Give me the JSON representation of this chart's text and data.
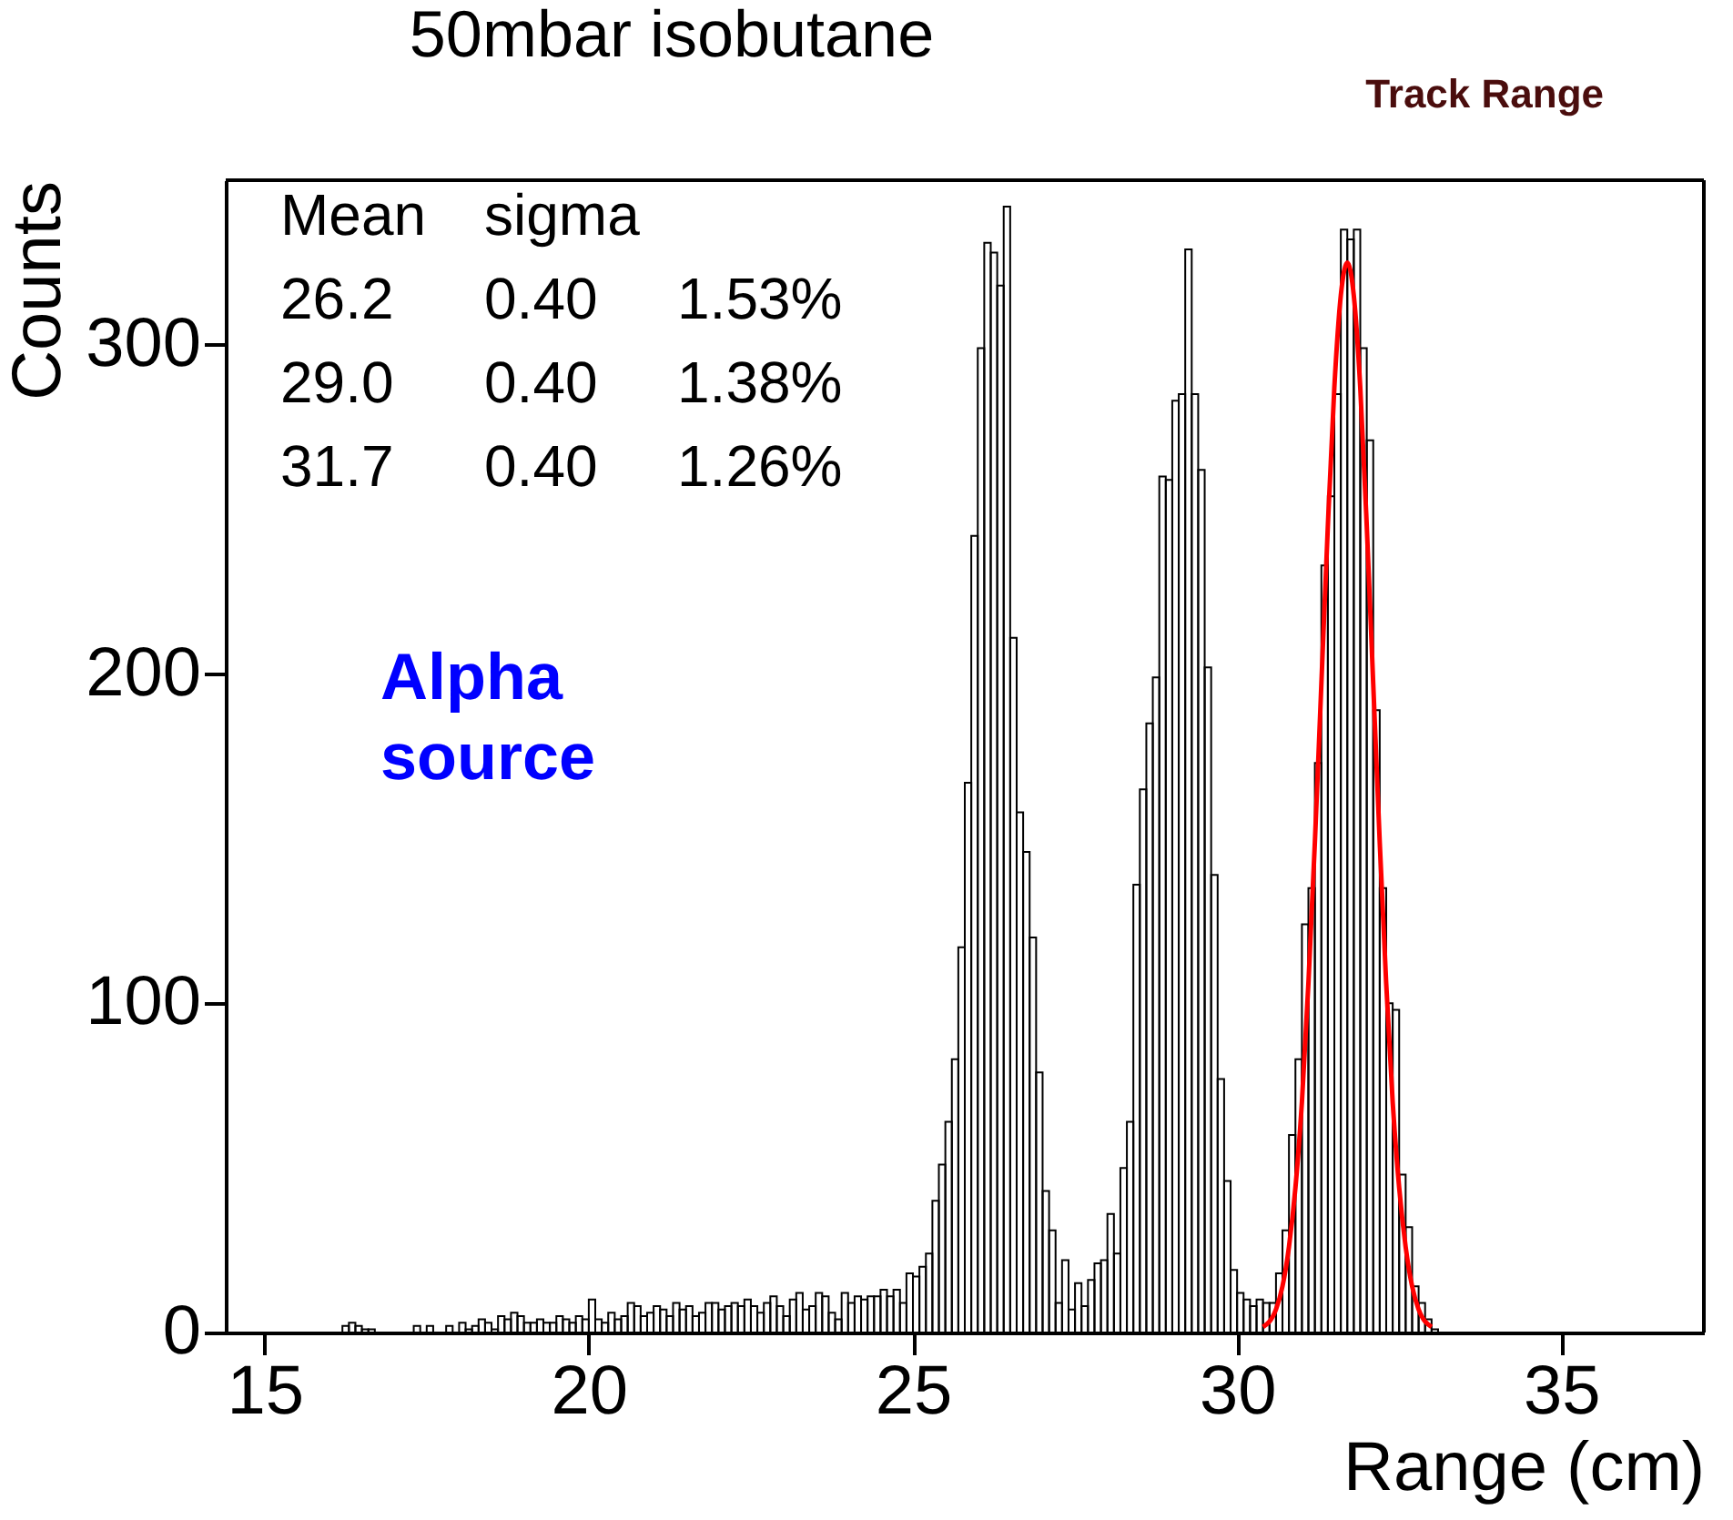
{
  "chart_data": {
    "type": "histogram",
    "title": "50mbar isobutane",
    "subtitle": "Track Range",
    "xlabel": "Range (cm)",
    "ylabel": "Counts",
    "annotations": [
      "Mean sigma",
      "26.2 0.40 1.53%",
      "29.0 0.40 1.38%",
      "31.7 0.40 1.26%",
      "Alpha source"
    ],
    "xlim": [
      14.4,
      37.2
    ],
    "xticks": [
      15,
      20,
      25,
      30,
      35
    ],
    "ylim": [
      0,
      350
    ],
    "yticks": [
      0,
      100,
      200,
      300
    ],
    "series": [
      {
        "color": "#000000",
        "bins": [
          16.0,
          16.1,
          16.2,
          16.3,
          16.4,
          16.5,
          16.6,
          16.7,
          16.8,
          16.9,
          17.0,
          17.1,
          17.2,
          17.3,
          17.4,
          17.5,
          17.6,
          17.7,
          17.8,
          17.9,
          18.0,
          18.1,
          18.2,
          18.3,
          18.4,
          18.5,
          18.6,
          18.7,
          18.8,
          18.9,
          19.0,
          19.1,
          19.2,
          19.3,
          19.4,
          19.5,
          19.6,
          19.7,
          19.8,
          19.9,
          20.0,
          20.1,
          20.2,
          20.3,
          20.4,
          20.5,
          20.6,
          20.7,
          20.8,
          20.9,
          21.0,
          21.1,
          21.2,
          21.3,
          21.4,
          21.5,
          21.6,
          21.7,
          21.8,
          21.9,
          22.0,
          22.1,
          22.2,
          22.3,
          22.4,
          22.5,
          22.6,
          22.7,
          22.8,
          22.9,
          23.0,
          23.1,
          23.2,
          23.3,
          23.4,
          23.5,
          23.6,
          23.7,
          23.8,
          23.9,
          24.0,
          24.1,
          24.2,
          24.3,
          24.4,
          24.5,
          24.6,
          24.7,
          24.8,
          24.9,
          25.0,
          25.1,
          25.2,
          25.3,
          25.4,
          25.5,
          25.6,
          25.7,
          25.8,
          25.9,
          26.0,
          26.1,
          26.2,
          26.3,
          26.4,
          26.5,
          26.6,
          26.7,
          26.8,
          26.9,
          27.0,
          27.1,
          27.2,
          27.3,
          27.4,
          27.5,
          27.6,
          27.7,
          27.8,
          27.9,
          28.0,
          28.1,
          28.2,
          28.3,
          28.4,
          28.5,
          28.6,
          28.7,
          28.8,
          28.9,
          29.0,
          29.1,
          29.2,
          29.3,
          29.4,
          29.5,
          29.6,
          29.7,
          29.8,
          29.9,
          30.0,
          30.1,
          30.2,
          30.3,
          30.4,
          30.5,
          30.6,
          30.7,
          30.8,
          30.9,
          31.0,
          31.1,
          31.2,
          31.3,
          31.4,
          31.5,
          31.6,
          31.7,
          31.8,
          31.9,
          32.0,
          32.1,
          32.2,
          32.3,
          32.4,
          32.5,
          32.6,
          32.7,
          32.8,
          32.9,
          33.0,
          33.1,
          33.2
        ],
        "values": [
          0,
          0,
          2,
          3,
          2,
          1,
          1,
          0,
          0,
          0,
          0,
          0,
          0,
          2,
          0,
          2,
          0,
          0,
          2,
          0,
          3,
          1,
          2,
          4,
          3,
          1,
          5,
          4,
          6,
          5,
          3,
          3,
          4,
          3,
          3,
          5,
          4,
          3,
          5,
          4,
          10,
          4,
          3,
          6,
          4,
          5,
          9,
          8,
          5,
          6,
          8,
          7,
          5,
          9,
          7,
          8,
          5,
          6,
          9,
          9,
          7,
          8,
          9,
          8,
          10,
          8,
          6,
          9,
          11,
          8,
          5,
          10,
          12,
          7,
          8,
          12,
          11,
          6,
          4,
          12,
          9,
          11,
          10,
          11,
          11,
          13,
          11,
          13,
          9,
          18,
          17,
          20,
          24,
          40,
          51,
          64,
          83,
          117,
          167,
          242,
          299,
          331,
          328,
          318,
          342,
          211,
          158,
          146,
          120,
          79,
          43,
          31,
          9,
          22,
          7,
          15,
          8,
          16,
          21,
          22,
          36,
          24,
          50,
          64,
          136,
          165,
          185,
          199,
          260,
          259,
          283,
          285,
          329,
          285,
          262,
          202,
          139,
          77,
          46,
          19,
          12,
          10,
          8,
          10,
          9,
          9,
          18,
          31,
          60,
          83,
          124,
          135,
          173,
          233,
          254,
          285,
          335,
          332,
          335,
          299,
          271,
          189,
          135,
          100,
          98,
          48,
          32,
          14,
          9,
          4,
          1,
          0
        ]
      },
      {
        "type": "line",
        "color": "#ff0000",
        "x": [
          30.4,
          30.6,
          30.7,
          30.8,
          30.9,
          31.0,
          31.1,
          31.2,
          31.3,
          31.4,
          31.5,
          31.6,
          31.7,
          31.8,
          31.9,
          32.0,
          32.1,
          32.2,
          32.3,
          32.4,
          32.5,
          32.6,
          32.7,
          32.8,
          33.0
        ],
        "values": [
          1.7,
          7,
          14,
          26,
          44,
          70,
          106,
          149,
          197,
          245,
          287,
          315,
          325,
          315,
          287,
          245,
          197,
          149,
          106,
          70,
          44,
          26,
          14,
          7,
          1.7
        ]
      }
    ]
  }
}
